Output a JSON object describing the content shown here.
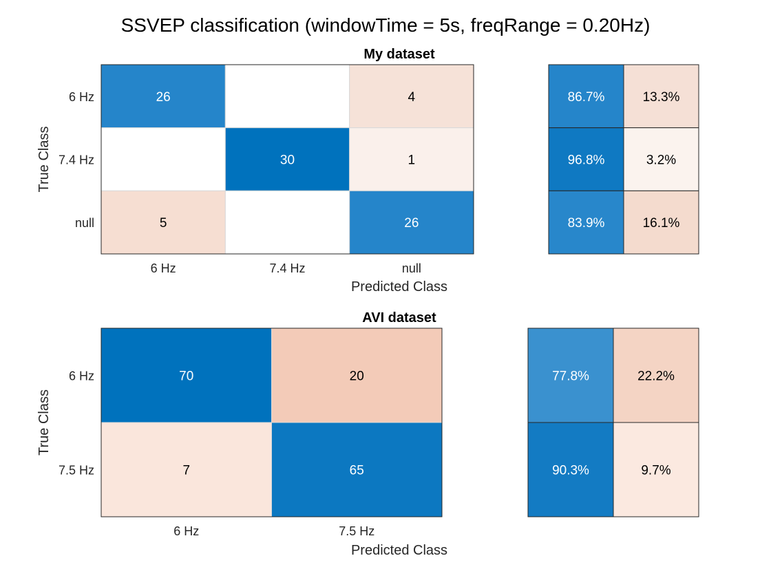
{
  "title": "SSVEP classification (windowTime = 5s, freqRange = 0.20Hz)",
  "chart_data": [
    {
      "type": "heatmap",
      "title": "My dataset",
      "xlabel": "Predicted Class",
      "ylabel": "True Class",
      "row_labels": [
        "6 Hz",
        "7.4 Hz",
        "null"
      ],
      "col_labels": [
        "6 Hz",
        "7.4 Hz",
        "null"
      ],
      "values": [
        [
          26,
          0,
          4
        ],
        [
          0,
          30,
          1
        ],
        [
          5,
          0,
          26
        ]
      ],
      "row_summary": [
        [
          "86.7%",
          "13.3%"
        ],
        [
          "96.8%",
          "3.2%"
        ],
        [
          "83.9%",
          "16.1%"
        ]
      ],
      "colors": {
        "cells": [
          [
            "#2585ca",
            "#ffffff",
            "#f6e2d8"
          ],
          [
            "#ffffff",
            "#0072bd",
            "#faf0eb"
          ],
          [
            "#f6ded2",
            "#ffffff",
            "#2585ca"
          ]
        ],
        "summary": [
          [
            "#2585ca",
            "#f5e0d6"
          ],
          [
            "#0f79c2",
            "#fbf3ee"
          ],
          [
            "#2887cb",
            "#f4dbce"
          ]
        ]
      }
    },
    {
      "type": "heatmap",
      "title": "AVI dataset",
      "xlabel": "Predicted Class",
      "ylabel": "True Class",
      "row_labels": [
        "6 Hz",
        "7.5 Hz"
      ],
      "col_labels": [
        "6 Hz",
        "7.5 Hz"
      ],
      "values": [
        [
          70,
          20
        ],
        [
          7,
          65
        ]
      ],
      "row_summary": [
        [
          "77.8%",
          "22.2%"
        ],
        [
          "90.3%",
          "9.7%"
        ]
      ],
      "colors": {
        "cells": [
          [
            "#0072bd",
            "#f3cbb8"
          ],
          [
            "#fae6dc",
            "#0c78c1"
          ]
        ],
        "summary": [
          [
            "#3a91cf",
            "#f4d4c4"
          ],
          [
            "#137bc3",
            "#fbe9e0"
          ]
        ]
      }
    }
  ]
}
